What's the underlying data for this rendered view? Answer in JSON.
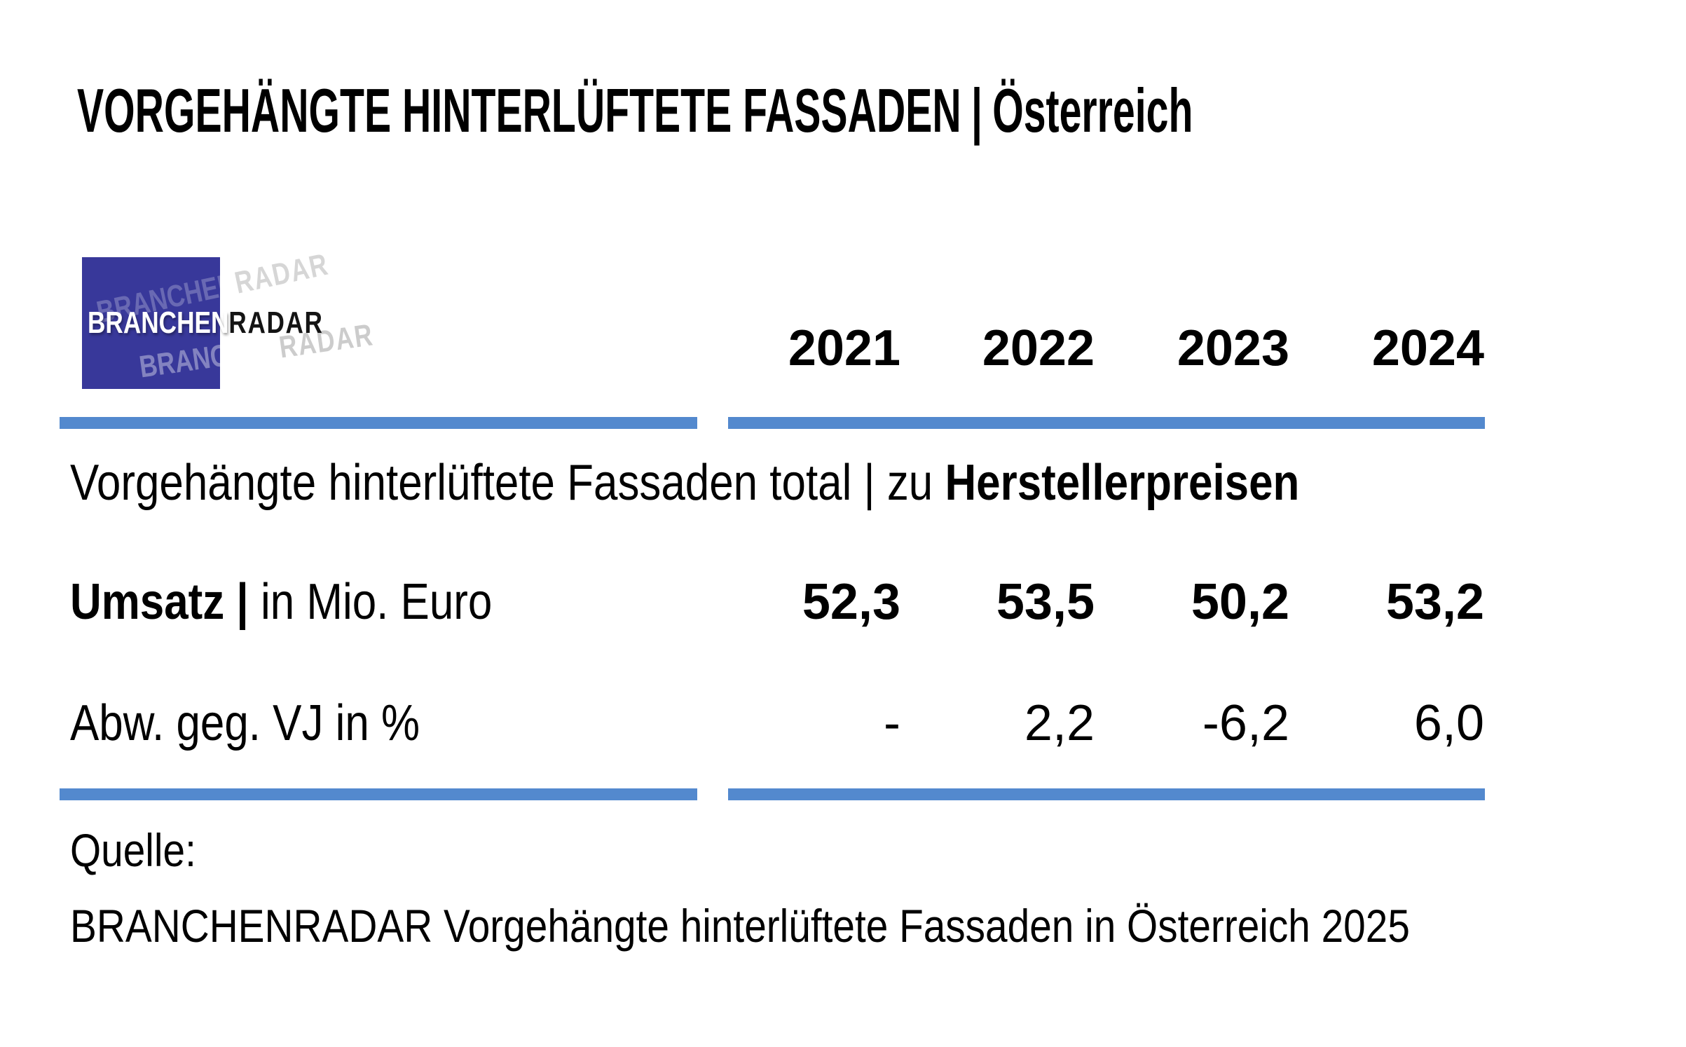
{
  "title": {
    "main": "VORGEHÄNGTE HINTERLÜFTETE FASSADEN",
    "separator": "|",
    "region": "Österreich"
  },
  "logo": {
    "text_primary": "BRANCHEN",
    "text_secondary": "RADAR"
  },
  "table": {
    "years": [
      "2021",
      "2022",
      "2023",
      "2024"
    ],
    "section": {
      "label": "Vorgehängte hinterlüftete Fassaden total | zu ",
      "label_emphasis": "Herstellerpreisen"
    },
    "umsatz_row": {
      "label_bold": "Umsatz |",
      "label": " in Mio. Euro",
      "values": [
        "52,3",
        "53,5",
        "50,2",
        "53,2"
      ]
    },
    "abw_row": {
      "label": "Abw. geg. VJ in %",
      "values": [
        "-",
        "2,2",
        "-6,2",
        "6,0"
      ]
    }
  },
  "footer": {
    "label": "Quelle:",
    "source": "BRANCHENRADAR Vorgehängte hinterlüftete Fassaden in Österreich 2025"
  },
  "colors": {
    "rule_blue": "#5389CE",
    "logo_blue": "#38389A",
    "text": "#000000"
  },
  "chart_data": {
    "type": "table",
    "title": "VORGEHÄNGTE HINTERLÜFTETE FASSADEN | Österreich",
    "section": "Vorgehängte hinterlüftete Fassaden total | zu Herstellerpreisen",
    "columns": [
      "2021",
      "2022",
      "2023",
      "2024"
    ],
    "rows": [
      {
        "label": "Umsatz | in Mio. Euro",
        "values": [
          52.3,
          53.5,
          50.2,
          53.2
        ]
      },
      {
        "label": "Abw. geg. VJ in %",
        "values": [
          null,
          2.2,
          -6.2,
          6.0
        ]
      }
    ],
    "source": "BRANCHENRADAR Vorgehängte hinterlüftete Fassaden in Österreich 2025"
  }
}
